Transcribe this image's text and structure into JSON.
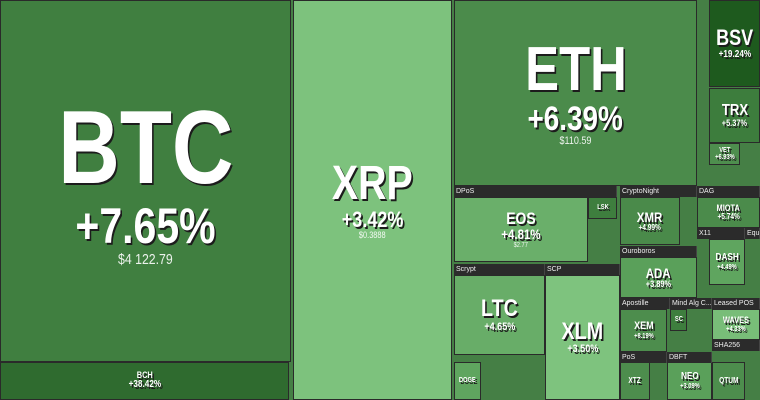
{
  "tiles": [
    {
      "ticker": "BTC",
      "change": "+7.65%",
      "price": "$4 122.79"
    },
    {
      "ticker": "BCH",
      "change": "+38.42%"
    },
    {
      "ticker": "XRP",
      "change": "+3.42%",
      "price": "$0.3888"
    },
    {
      "ticker": "ETH",
      "change": "+6.39%",
      "price": "$110.59"
    },
    {
      "ticker": "BSV",
      "change": "+19.24%"
    },
    {
      "ticker": "TRX",
      "change": "+5.37%"
    },
    {
      "ticker": "VET",
      "change": "+6.93%"
    },
    {
      "ticker": "EOS",
      "change": "+4.81%",
      "price": "$2.77"
    },
    {
      "ticker": "LSK"
    },
    {
      "ticker": "XMR",
      "change": "+4.99%"
    },
    {
      "ticker": "MIOTA",
      "change": "+5.74%"
    },
    {
      "ticker": "DASH",
      "change": "+4.49%"
    },
    {
      "ticker": "ADA",
      "change": "+3.89%"
    },
    {
      "ticker": "LTC",
      "change": "+4.65%"
    },
    {
      "ticker": "XLM",
      "change": "+3.50%"
    },
    {
      "ticker": "XEM",
      "change": "+8.19%"
    },
    {
      "ticker": "SC"
    },
    {
      "ticker": "WAVES",
      "change": "+4.33%"
    },
    {
      "ticker": "XTZ"
    },
    {
      "ticker": "NEO",
      "change": "+3.09%"
    },
    {
      "ticker": "QTUM"
    },
    {
      "ticker": "DOGE"
    }
  ],
  "groups": [
    "DPoS",
    "CryptoNight",
    "DAG",
    "Scrypt",
    "SCP",
    "Ouroboros",
    "Apostille",
    "Mind Alg C...",
    "Leased POS",
    "PoS",
    "DBFT",
    "X11",
    "SHA256",
    "Equi"
  ]
}
